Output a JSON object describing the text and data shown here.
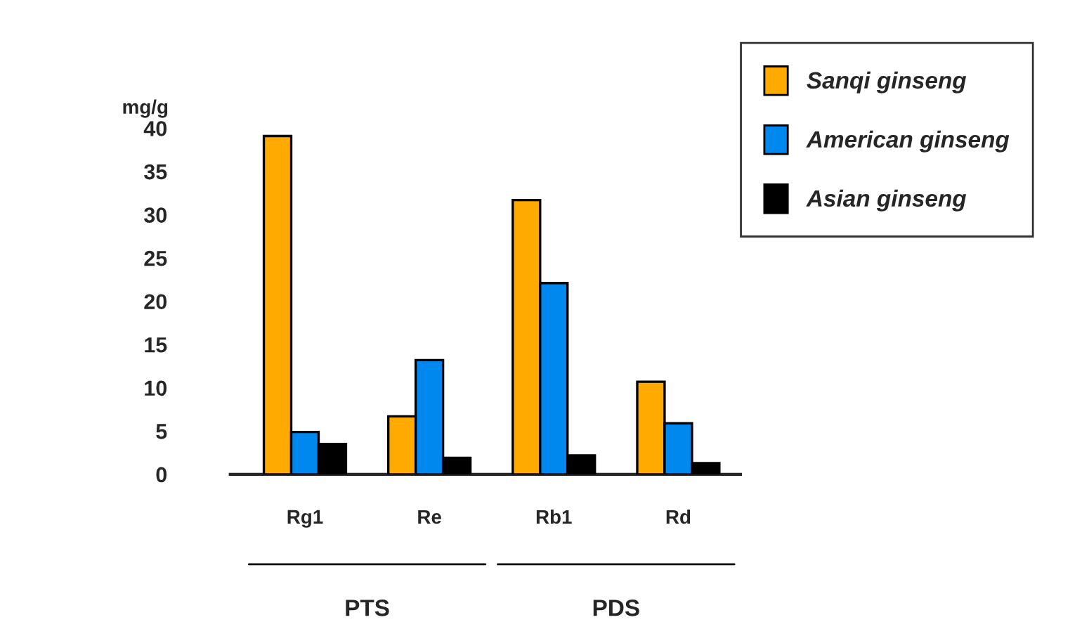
{
  "chart_data": {
    "type": "bar",
    "ylabel": "mg/g",
    "categories": [
      "Rg1",
      "Re",
      "Rb1",
      "Rd"
    ],
    "series": [
      {
        "name": "Sanqi ginseng",
        "color": "#ffaa00",
        "values": [
          39.1,
          6.7,
          31.7,
          10.7
        ]
      },
      {
        "name": "American ginseng",
        "color": "#0088ee",
        "values": [
          4.9,
          13.2,
          22.1,
          5.9
        ]
      },
      {
        "name": "Asian ginseng",
        "color": "#000000",
        "values": [
          3.5,
          1.9,
          2.2,
          1.3
        ]
      }
    ],
    "ylim": [
      0,
      40
    ],
    "yticks": [
      0,
      5,
      10,
      15,
      20,
      25,
      30,
      35,
      40
    ],
    "grid": false,
    "legend": "top right",
    "annotations": [
      "PTS",
      "PDS"
    ]
  }
}
